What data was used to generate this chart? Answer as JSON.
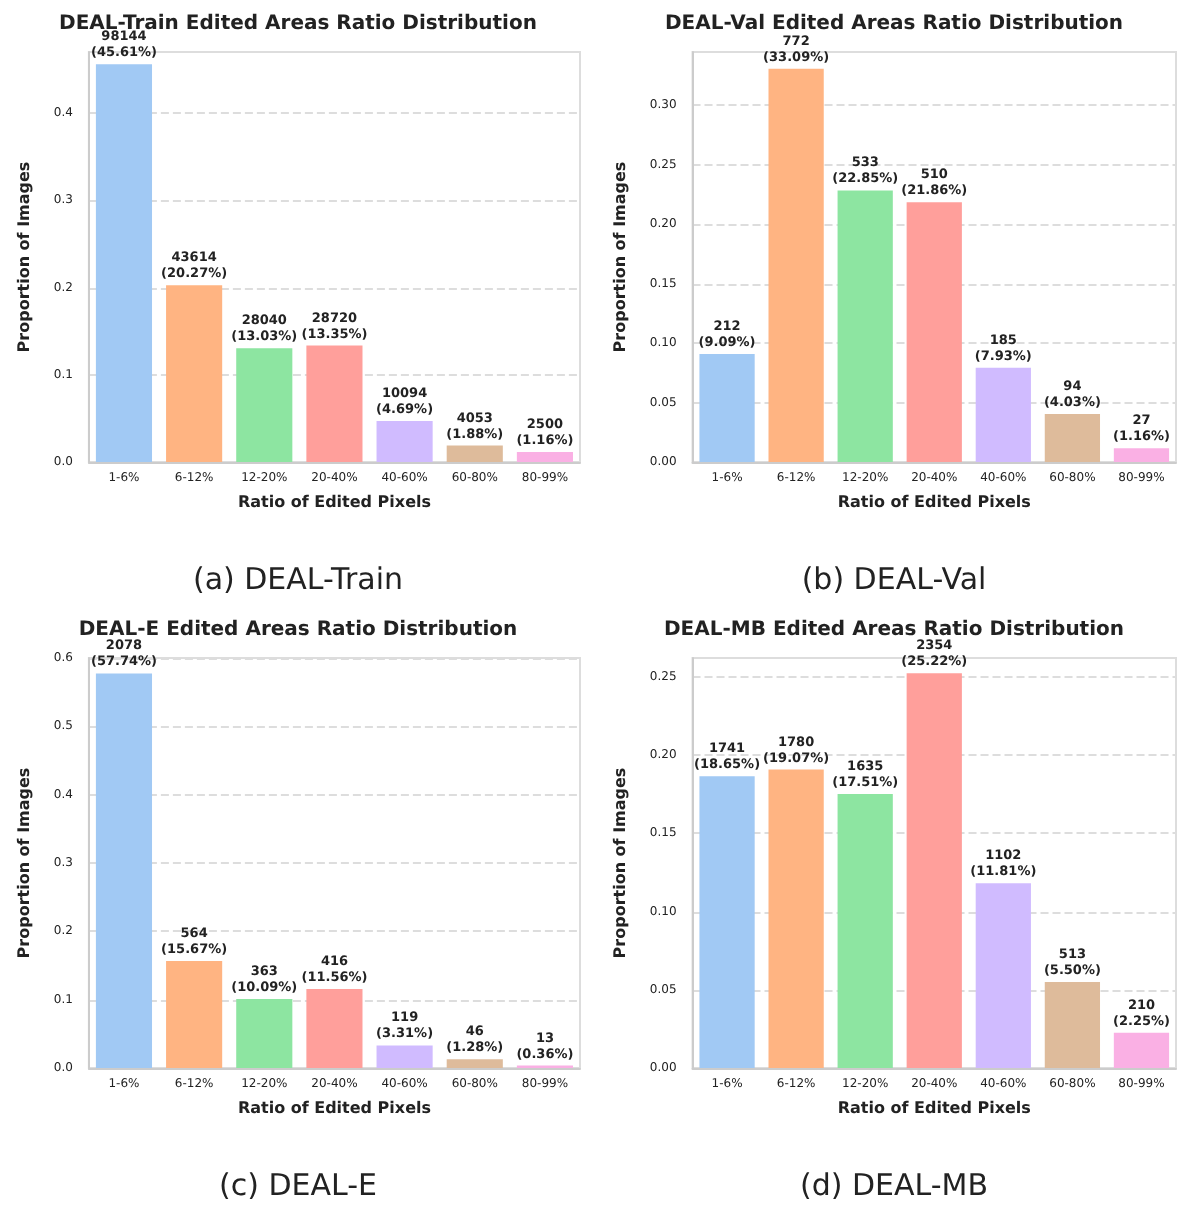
{
  "chart_data": [
    {
      "type": "bar",
      "title": "DEAL-Train Edited Areas Ratio Distribution",
      "xlabel": "Ratio of Edited Pixels",
      "ylabel": "Proportion of Images",
      "annotations": [
        "(a) DEAL-Train"
      ],
      "categories": [
        "1-6%",
        "6-12%",
        "12-20%",
        "20-40%",
        "40-60%",
        "60-80%",
        "80-99%"
      ],
      "values": [
        0.4561,
        0.2027,
        0.1303,
        0.1335,
        0.0469,
        0.0188,
        0.0116
      ],
      "value_labels": [
        "98144 (45.61%)",
        "43614 (20.27%)",
        "28040 (13.03%)",
        "28720 (13.35%)",
        "10094 (4.69%)",
        "4053 (1.88%)",
        "2500 (1.16%)"
      ],
      "colors": [
        "#a1c9f4",
        "#ffb482",
        "#8de5a1",
        "#ff9f9b",
        "#d0bbff",
        "#debb9b",
        "#fab0e4"
      ],
      "ylim": [
        0,
        0.47
      ],
      "yticks": [
        {
          "value": 0,
          "label": "0.0"
        },
        0.1,
        0.2,
        0.3,
        0.4
      ],
      "grid": "y"
    },
    {
      "type": "bar",
      "title": "DEAL-Val Edited Areas Ratio Distribution",
      "xlabel": "Ratio of Edited Pixels",
      "ylabel": "Proportion of Images",
      "annotations": [
        "(b) DEAL-Val"
      ],
      "categories": [
        "1-6%",
        "6-12%",
        "12-20%",
        "20-40%",
        "40-60%",
        "60-80%",
        "80-99%"
      ],
      "values": [
        0.0909,
        0.3309,
        0.2285,
        0.2186,
        0.0793,
        0.0403,
        0.0116
      ],
      "value_labels": [
        "212 (9.09%)",
        "772 (33.09%)",
        "533 (22.85%)",
        "510 (21.86%)",
        "185 (7.93%)",
        "94 (4.03%)",
        "27 (1.16%)"
      ],
      "colors": [
        "#a1c9f4",
        "#ffb482",
        "#8de5a1",
        "#ff9f9b",
        "#d0bbff",
        "#debb9b",
        "#fab0e4"
      ],
      "ylim": [
        0,
        0.345
      ],
      "yticks": [
        {
          "value": 0,
          "label": "0.00"
        },
        {
          "value": 0.05,
          "label": "0.05"
        },
        {
          "value": 0.1,
          "label": "0.10"
        },
        {
          "value": 0.15,
          "label": "0.15"
        },
        {
          "value": 0.2,
          "label": "0.20"
        },
        {
          "value": 0.25,
          "label": "0.25"
        },
        {
          "value": 0.3,
          "label": "0.30"
        }
      ],
      "grid": "y"
    },
    {
      "type": "bar",
      "title": "DEAL-E Edited Areas Ratio Distribution",
      "xlabel": "Ratio of Edited Pixels",
      "ylabel": "Proportion of Images",
      "annotations": [
        "(c) DEAL-E"
      ],
      "categories": [
        "1-6%",
        "6-12%",
        "12-20%",
        "20-40%",
        "40-60%",
        "60-80%",
        "80-99%"
      ],
      "values": [
        0.5774,
        0.1567,
        0.1009,
        0.1156,
        0.0331,
        0.0128,
        0.0036
      ],
      "value_labels": [
        "2078 (57.74%)",
        "564 (15.67%)",
        "363 (10.09%)",
        "416 (11.56%)",
        "119 (3.31%)",
        "46 (1.28%)",
        "13 (0.36%)"
      ],
      "colors": [
        "#a1c9f4",
        "#ffb482",
        "#8de5a1",
        "#ff9f9b",
        "#d0bbff",
        "#debb9b",
        "#fab0e4"
      ],
      "ylim": [
        0,
        0.6
      ],
      "yticks": [
        {
          "value": 0,
          "label": "0.0"
        },
        0.1,
        0.2,
        0.3,
        0.4,
        0.5,
        0.6
      ],
      "grid": "y"
    },
    {
      "type": "bar",
      "title": "DEAL-MB Edited Areas Ratio Distribution",
      "xlabel": "Ratio of Edited Pixels",
      "ylabel": "Proportion of Images",
      "annotations": [
        "(d) DEAL-MB"
      ],
      "categories": [
        "1-6%",
        "6-12%",
        "12-20%",
        "20-40%",
        "40-60%",
        "60-80%",
        "80-99%"
      ],
      "values": [
        0.1865,
        0.1907,
        0.1751,
        0.2522,
        0.1181,
        0.055,
        0.0225
      ],
      "value_labels": [
        "1741 (18.65%)",
        "1780 (19.07%)",
        "1635 (17.51%)",
        "2354 (25.22%)",
        "1102 (11.81%)",
        "513 (5.50%)",
        "210 (2.25%)"
      ],
      "colors": [
        "#a1c9f4",
        "#ffb482",
        "#8de5a1",
        "#ff9f9b",
        "#d0bbff",
        "#debb9b",
        "#fab0e4"
      ],
      "ylim": [
        0,
        0.262
      ],
      "yticks": [
        {
          "value": 0,
          "label": "0.00"
        },
        {
          "value": 0.05,
          "label": "0.05"
        },
        {
          "value": 0.1,
          "label": "0.10"
        },
        {
          "value": 0.15,
          "label": "0.15"
        },
        {
          "value": 0.2,
          "label": "0.20"
        },
        {
          "value": 0.25,
          "label": "0.25"
        }
      ],
      "grid": "y"
    }
  ]
}
